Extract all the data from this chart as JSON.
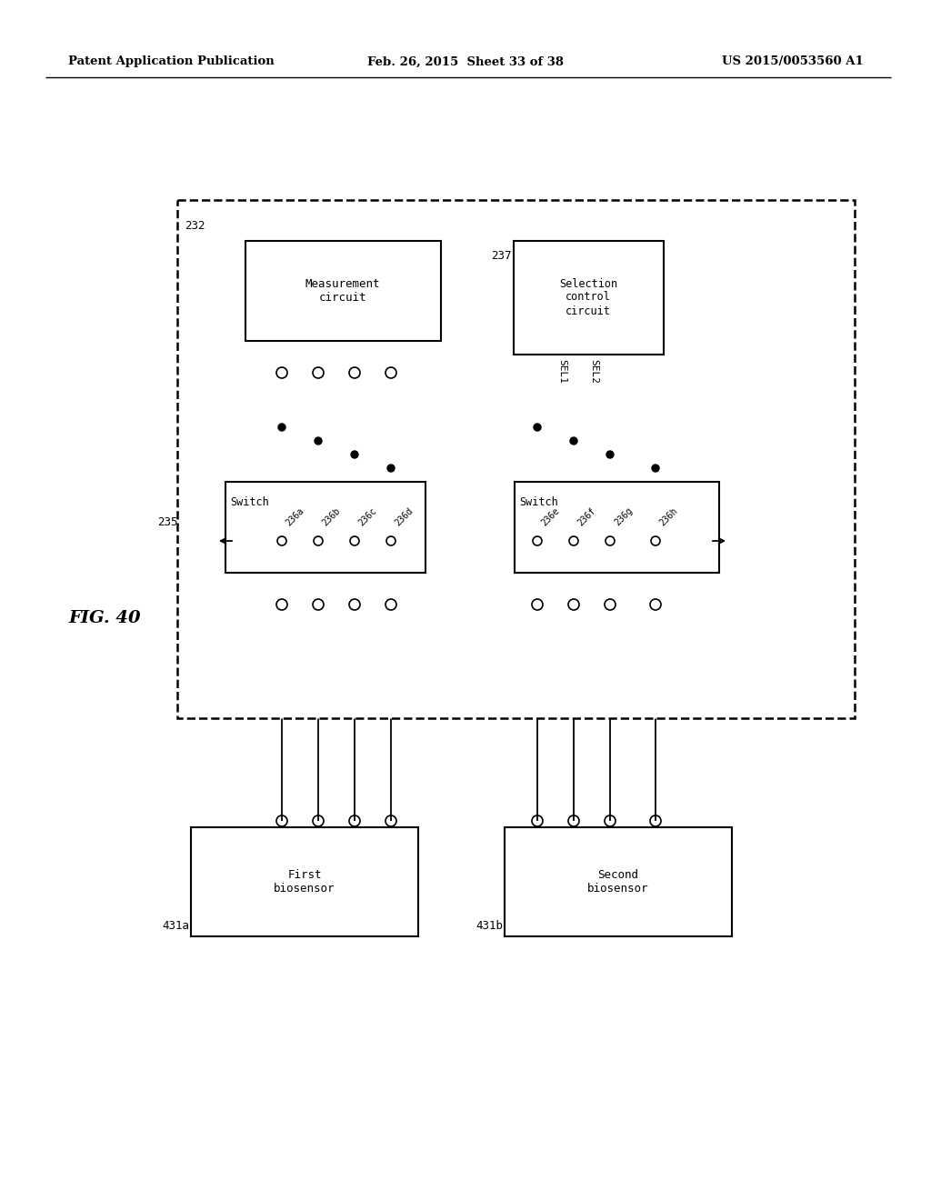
{
  "bg_color": "#ffffff",
  "header_left": "Patent Application Publication",
  "header_mid": "Feb. 26, 2015  Sheet 33 of 38",
  "header_right": "US 2015/0053560 A1",
  "fig_label": "FIG. 40"
}
